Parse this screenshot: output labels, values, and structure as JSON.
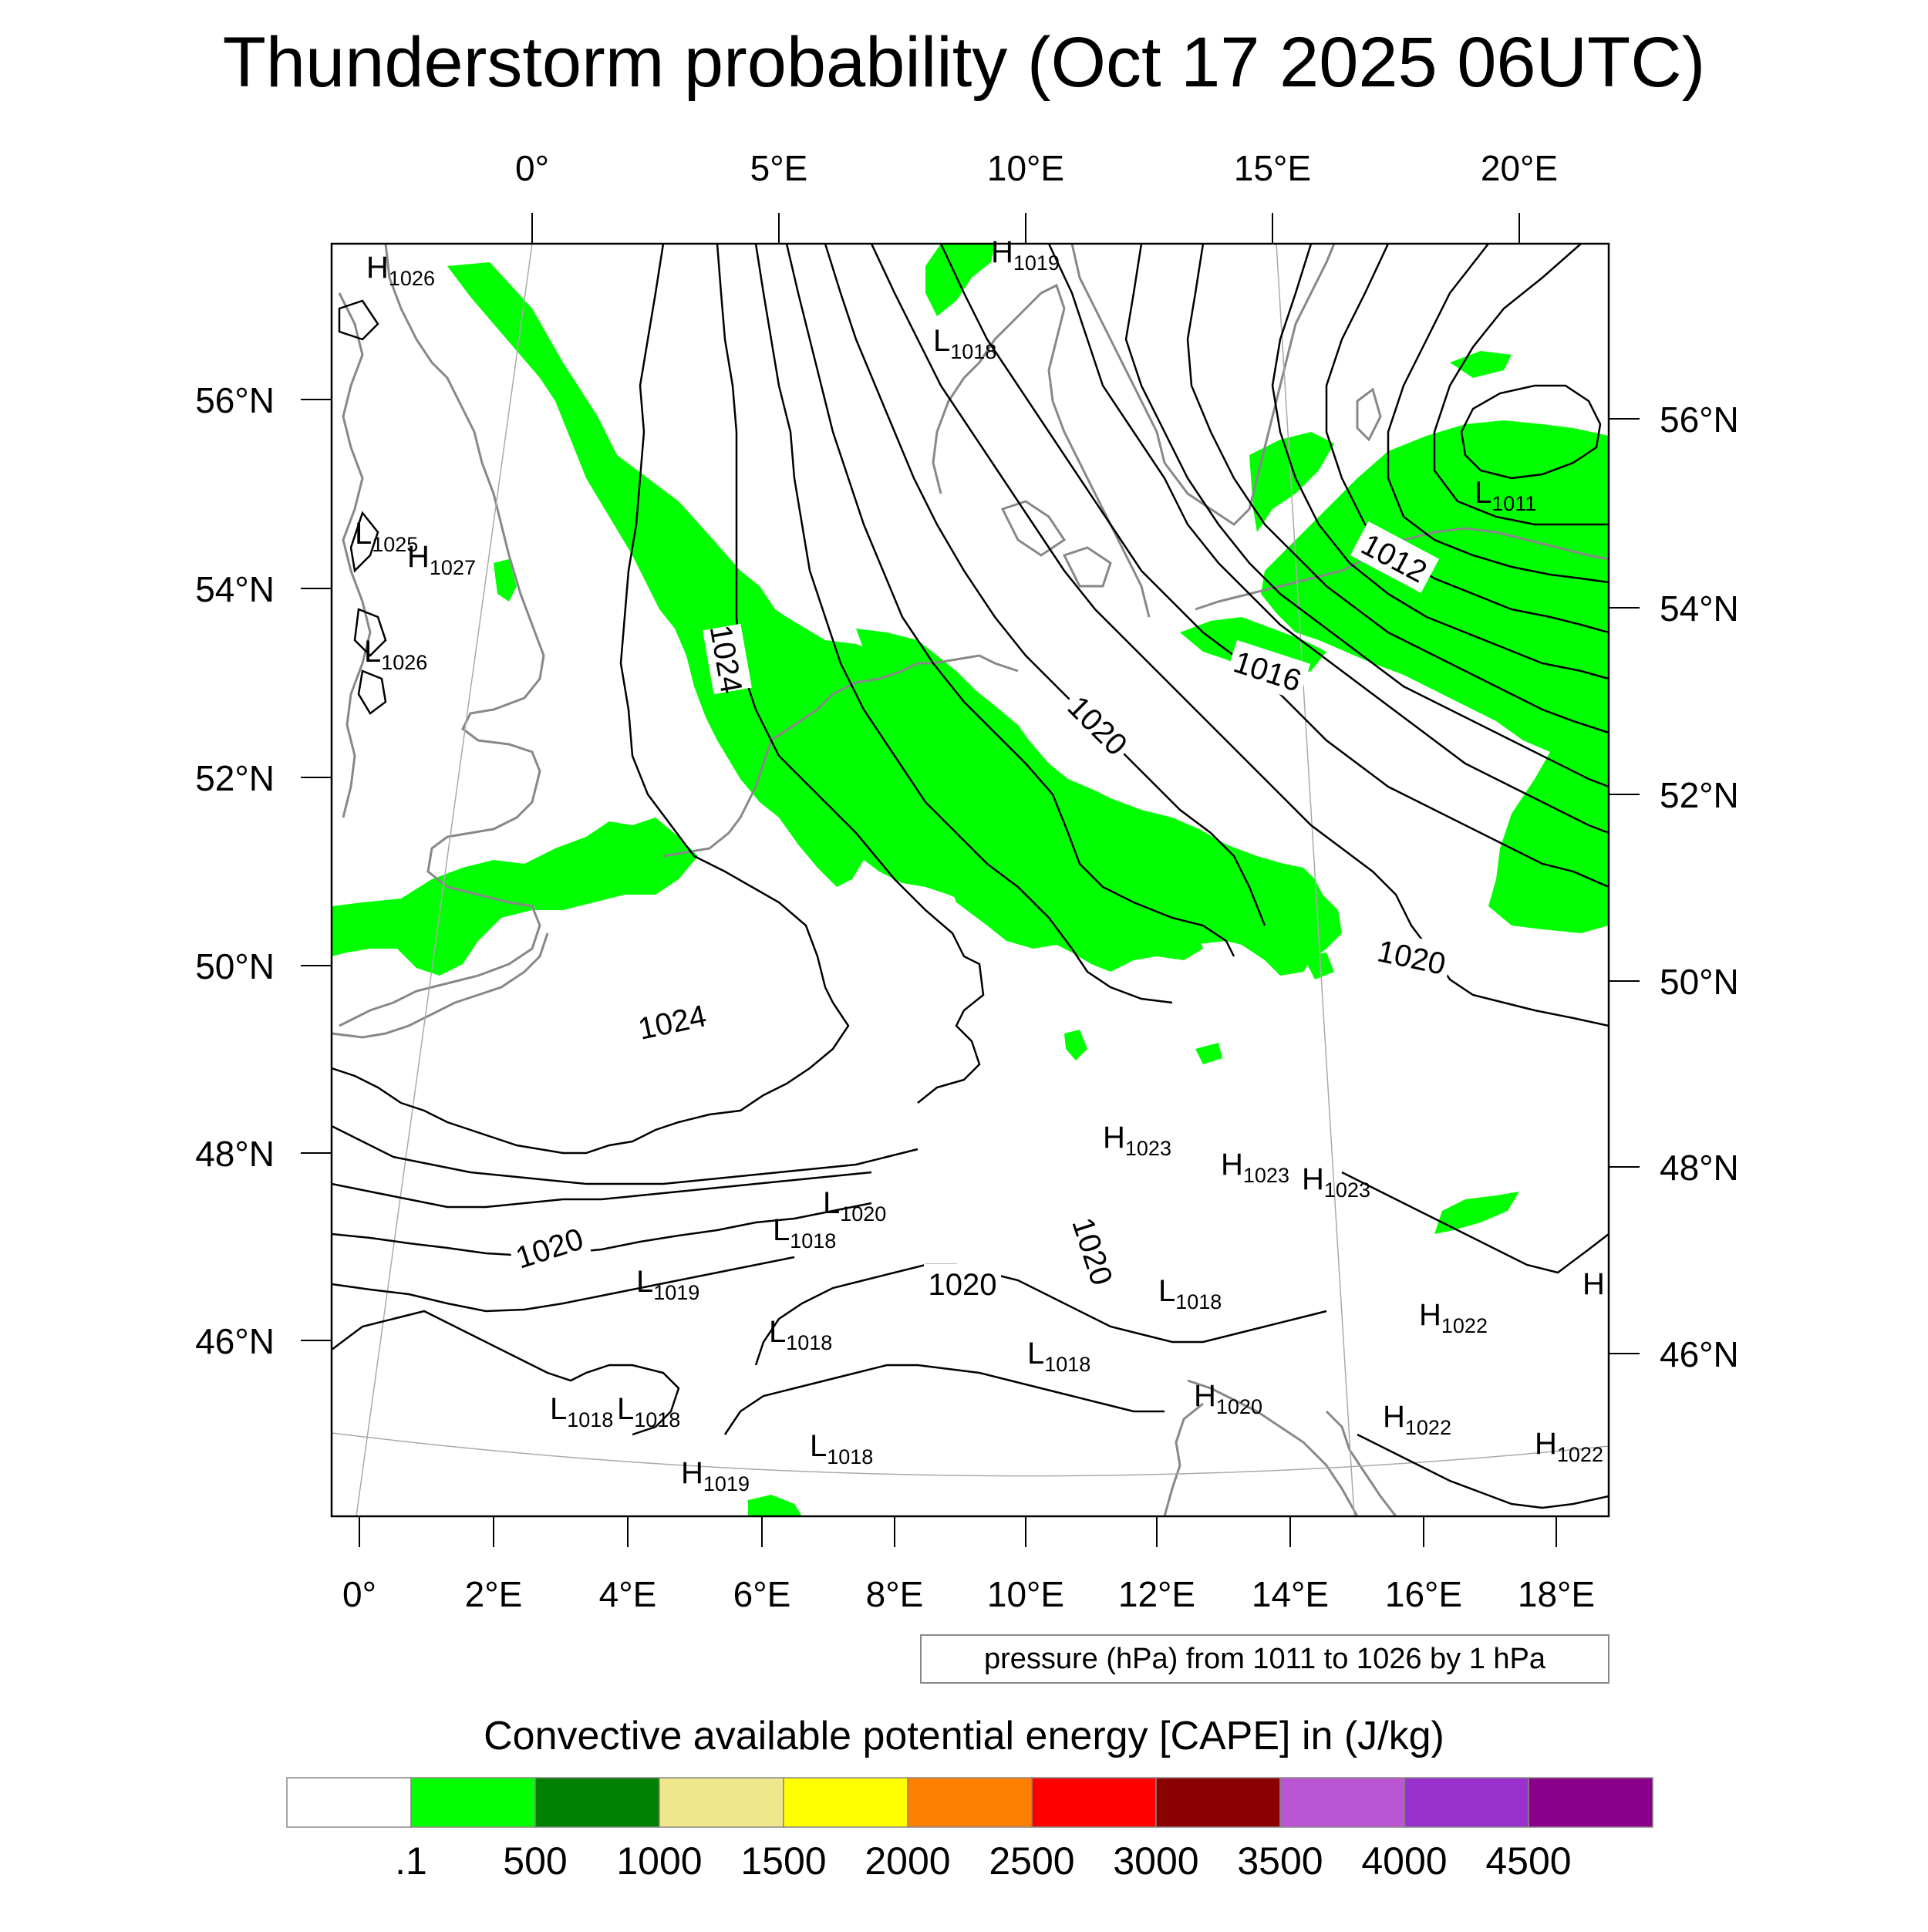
{
  "title": "Thunderstorm probability (Oct 17 2025 06UTC)",
  "top_lon_labels": [
    "0°",
    "5°E",
    "10°E",
    "15°E",
    "20°E"
  ],
  "bottom_lon_labels": [
    "0°",
    "2°E",
    "4°E",
    "6°E",
    "8°E",
    "10°E",
    "12°E",
    "14°E",
    "16°E",
    "18°E"
  ],
  "left_lat_labels": [
    "56°N",
    "54°N",
    "52°N",
    "50°N",
    "48°N",
    "46°N"
  ],
  "right_lat_labels": [
    "56°N",
    "54°N",
    "52°N",
    "50°N",
    "48°N",
    "46°N"
  ],
  "isobar_labels": [
    "1024",
    "1024",
    "1020",
    "1016",
    "1012",
    "1020",
    "1020",
    "1020",
    "1020"
  ],
  "pressure_centers": [
    {
      "type": "H",
      "value": "1026"
    },
    {
      "type": "H",
      "value": "1019"
    },
    {
      "type": "L",
      "value": "1018"
    },
    {
      "type": "L",
      "value": "1025"
    },
    {
      "type": "H",
      "value": "1027"
    },
    {
      "type": "L",
      "value": "1026"
    },
    {
      "type": "L",
      "value": "1011"
    },
    {
      "type": "H",
      "value": "1023"
    },
    {
      "type": "H",
      "value": "1023"
    },
    {
      "type": "H",
      "value": "1023"
    },
    {
      "type": "L",
      "value": "1020"
    },
    {
      "type": "L",
      "value": "1019"
    },
    {
      "type": "L",
      "value": "1018"
    },
    {
      "type": "L",
      "value": "1018"
    },
    {
      "type": "L",
      "value": "1018"
    },
    {
      "type": "H",
      "value": "1022"
    },
    {
      "type": "L",
      "value": "1018"
    },
    {
      "type": "L",
      "value": "1018"
    },
    {
      "type": "H",
      "value": "1020"
    },
    {
      "type": "H",
      "value": "1022"
    },
    {
      "type": "L",
      "value": "1018"
    },
    {
      "type": "L",
      "value": "1018"
    },
    {
      "type": "H",
      "value": "1019"
    },
    {
      "type": "H",
      "value": "1022"
    },
    {
      "type": "H",
      "value": ""
    }
  ],
  "contour_note": "pressure (hPa) from 1011 to 1026 by 1 hPa",
  "legend_title": "Convective available potential energy [CAPE] in (J/kg)",
  "legend_colors": [
    "#ffffff",
    "#00ff00",
    "#008000",
    "#f0e68c",
    "#ffff00",
    "#ff8000",
    "#ff0000",
    "#8b0000",
    "#ba55d3",
    "#9932cc",
    "#8b008b"
  ],
  "legend_labels": [
    ".1",
    "500",
    "1000",
    "1500",
    "2000",
    "2500",
    "3000",
    "3500",
    "4000",
    "4500"
  ],
  "colors": {
    "cape_fill": "#00ff00",
    "coast": "#888888",
    "isobar": "#000000",
    "grid": "#aaaaaa"
  }
}
